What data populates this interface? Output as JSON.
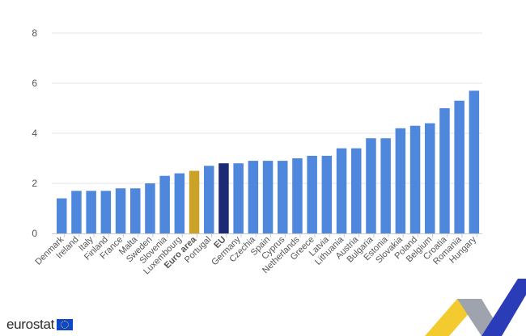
{
  "chart_data": {
    "type": "bar",
    "categories": [
      "Denmark",
      "Ireland",
      "Italy",
      "Finland",
      "France",
      "Malta",
      "Sweden",
      "Slovenia",
      "Luxembourg",
      "Euro area",
      "Portugal",
      "EU",
      "Germany",
      "Czechia",
      "Spain",
      "Cyprus",
      "Netherlands",
      "Greece",
      "Latvia",
      "Lithuania",
      "Austria",
      "Bulgaria",
      "Estonia",
      "Slovakia",
      "Poland",
      "Belgium",
      "Croatia",
      "Romania",
      "Hungary"
    ],
    "values": [
      1.4,
      1.7,
      1.7,
      1.7,
      1.8,
      1.8,
      2.0,
      2.3,
      2.4,
      2.5,
      2.7,
      2.8,
      2.8,
      2.9,
      2.9,
      2.9,
      3.0,
      3.1,
      3.1,
      3.4,
      3.4,
      3.8,
      3.8,
      4.2,
      4.3,
      4.4,
      5.0,
      5.3,
      5.7
    ],
    "highlight": {
      "Euro area": "#c9a227",
      "EU": "#1b2a74"
    },
    "bold_categories": [
      "Euro area",
      "EU"
    ],
    "bar_color": "#4f87dd",
    "ylim": [
      0,
      8
    ],
    "yticks": [
      0,
      2,
      4,
      6,
      8
    ],
    "grid": true,
    "title": "",
    "xlabel": "",
    "ylabel": ""
  },
  "branding": {
    "logo_text": "eurostat"
  }
}
